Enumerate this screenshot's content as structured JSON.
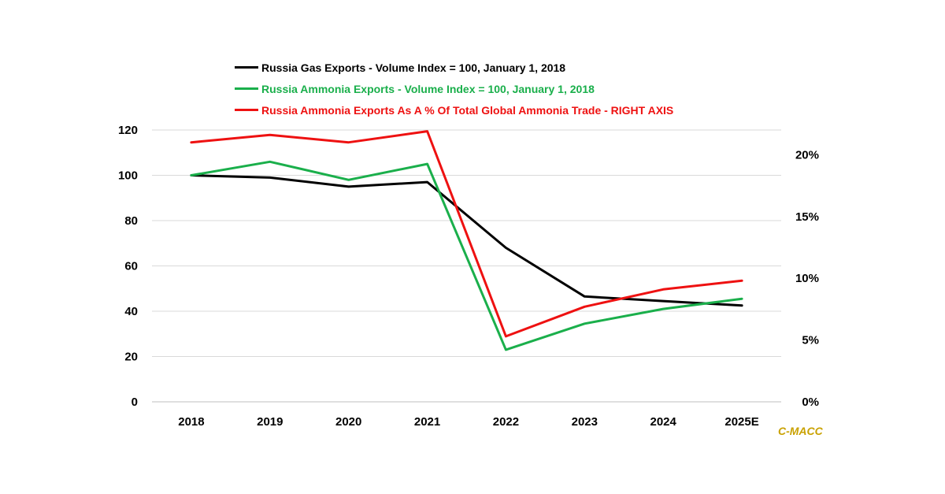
{
  "chart_data": {
    "type": "line",
    "title": "",
    "xlabel": "",
    "ylabel": "",
    "categories": [
      "2018",
      "2019",
      "2020",
      "2021",
      "2022",
      "2023",
      "2024",
      "2025E"
    ],
    "ylim": [
      0,
      120
    ],
    "y_ticks": [
      "0",
      "20",
      "40",
      "60",
      "80",
      "100",
      "120"
    ],
    "y2lim": [
      0,
      22
    ],
    "y2_ticks": [
      "0%",
      "5%",
      "10%",
      "15%",
      "20%"
    ],
    "grid": true,
    "legend_position": "top-center",
    "series": [
      {
        "name": "Russia Gas Exports - Volume Index = 100, January 1, 2018",
        "axis": "left",
        "color": "#000000",
        "values": [
          100,
          99,
          95,
          97,
          68,
          46.5,
          44.5,
          42.5
        ]
      },
      {
        "name": "Russia Ammonia Exports - Volume Index = 100, January 1, 2018",
        "axis": "left",
        "color": "#1aaf4b",
        "values": [
          100,
          106,
          98,
          105,
          23,
          34.5,
          41,
          45.5
        ]
      },
      {
        "name": "Russia Ammonia Exports As A % Of Total Global Ammonia Trade - RIGHT AXIS",
        "axis": "right",
        "color": "#ee1111",
        "values": [
          21,
          21.6,
          21,
          21.9,
          5.3,
          7.7,
          9.1,
          9.8
        ]
      }
    ],
    "annotation": "C-MACC",
    "annotation_color": "#c9a100"
  }
}
